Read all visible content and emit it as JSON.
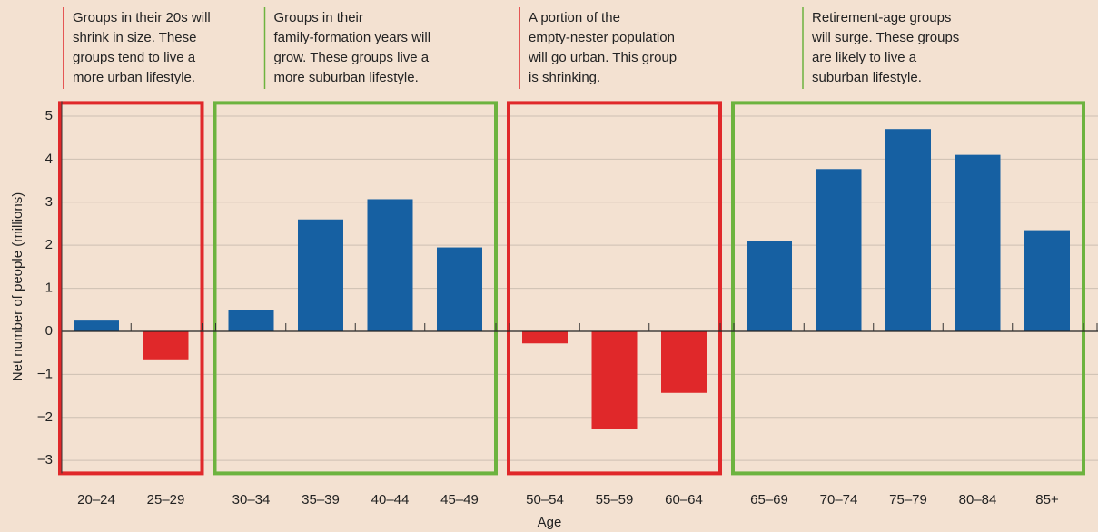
{
  "chart_data": {
    "type": "bar",
    "x_label": "Age",
    "y_label": "Net number of people (millions)",
    "color": "#1660a2",
    "negative_color": "#e0282a",
    "ylim": [
      -3.3,
      5.35
    ],
    "yticks": [
      {
        "value": -3,
        "label": "−3"
      },
      {
        "value": -2,
        "label": "−2"
      },
      {
        "value": -1,
        "label": "−1"
      },
      0,
      1,
      2,
      3,
      4,
      5
    ],
    "grid": true,
    "groups": [
      {
        "color": "#e0282a",
        "annotation": [
          "Groups in their 20s will",
          "shrink in size. These",
          "groups tend to live a",
          "more urban lifestyle."
        ],
        "categories": [
          "20–24",
          "25–29"
        ],
        "values": [
          0.25,
          -0.65
        ]
      },
      {
        "color": "#6db33f",
        "annotation": [
          "Groups in their",
          "family-formation years will",
          "grow. These groups live a",
          "more suburban lifestyle."
        ],
        "categories": [
          "30–34",
          "35–39",
          "40–44",
          "45–49"
        ],
        "values": [
          0.5,
          2.6,
          3.07,
          1.95
        ]
      },
      {
        "color": "#e0282a",
        "annotation": [
          "A portion of the",
          "empty-nester population",
          "will go urban. This group",
          "is shrinking."
        ],
        "categories": [
          "50–54",
          "55–59",
          "60–64"
        ],
        "values": [
          -0.28,
          -2.27,
          -1.43
        ]
      },
      {
        "color": "#6db33f",
        "annotation": [
          "Retirement-age groups",
          "will surge. These groups",
          "are likely to live a",
          "suburban lifestyle."
        ],
        "categories": [
          "65–69",
          "70–74",
          "75–79",
          "80–84",
          "85+"
        ],
        "values": [
          2.1,
          3.77,
          4.7,
          4.1,
          2.35
        ]
      }
    ]
  }
}
